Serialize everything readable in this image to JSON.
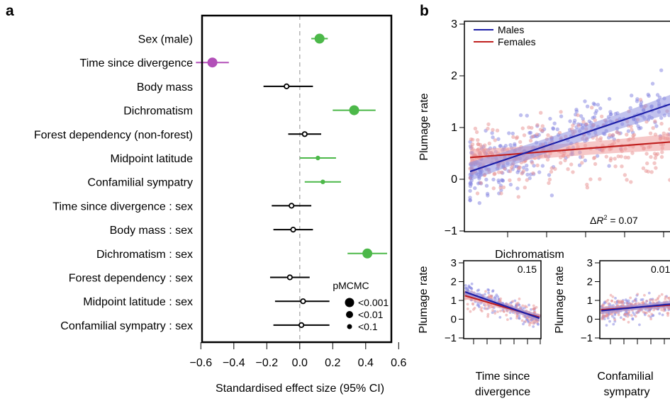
{
  "panel_labels": {
    "a": "a",
    "b": "b"
  },
  "colors": {
    "significant_green": "#4cb849",
    "time_purple": "#b24fb8",
    "nonsig_black": "#000000",
    "males_blue": "#1d1fa8",
    "females_red": "#c0201f",
    "males_band": "#8e8fe0",
    "females_band": "#ee9a9a",
    "males_point": "#8080e0",
    "females_point": "#e89090"
  },
  "chart_data": [
    {
      "type": "forest",
      "xlabel": "Standardised effect size (95% CI)",
      "xlim": [
        -0.7,
        0.65
      ],
      "xticks": [
        -0.6,
        -0.4,
        -0.2,
        0.0,
        0.2,
        0.4,
        0.6
      ],
      "xtick_labels": [
        "−0.6",
        "−0.4",
        "−0.2",
        "0.0",
        "0.2",
        "0.4",
        "0.6"
      ],
      "reference_line": 0,
      "legend": {
        "title": "pMCMC",
        "entries": [
          {
            "label": "<0.001",
            "size": "large"
          },
          {
            "label": "<0.01",
            "size": "medium"
          },
          {
            "label": "<0.1",
            "size": "small"
          }
        ]
      },
      "rows": [
        {
          "label": "Sex (male)",
          "estimate": 0.12,
          "lower": 0.07,
          "upper": 0.17,
          "color": "green",
          "size": "large"
        },
        {
          "label": "Time since divergence",
          "estimate": -0.53,
          "lower": -0.63,
          "upper": -0.43,
          "color": "purple",
          "size": "large"
        },
        {
          "label": "Body mass",
          "estimate": -0.08,
          "lower": -0.22,
          "upper": 0.08,
          "color": "black",
          "size": "small"
        },
        {
          "label": "Dichromatism",
          "estimate": 0.33,
          "lower": 0.2,
          "upper": 0.46,
          "color": "green",
          "size": "large"
        },
        {
          "label": "Forest dependency (non-forest)",
          "estimate": 0.03,
          "lower": -0.07,
          "upper": 0.13,
          "color": "black",
          "size": "small"
        },
        {
          "label": "Midpoint latitude",
          "estimate": 0.11,
          "lower": 0.0,
          "upper": 0.22,
          "color": "green",
          "size": "small"
        },
        {
          "label": "Confamilial sympatry",
          "estimate": 0.14,
          "lower": 0.03,
          "upper": 0.25,
          "color": "green",
          "size": "small"
        },
        {
          "label": "Time since divergence : sex",
          "estimate": -0.05,
          "lower": -0.17,
          "upper": 0.07,
          "color": "black",
          "size": "small"
        },
        {
          "label": "Body mass : sex",
          "estimate": -0.04,
          "lower": -0.16,
          "upper": 0.08,
          "color": "black",
          "size": "small"
        },
        {
          "label": "Dichromatism : sex",
          "estimate": 0.41,
          "lower": 0.29,
          "upper": 0.53,
          "color": "green",
          "size": "large"
        },
        {
          "label": "Forest dependency : sex",
          "estimate": -0.06,
          "lower": -0.18,
          "upper": 0.06,
          "color": "black",
          "size": "small"
        },
        {
          "label": "Midpoint latitude : sex",
          "estimate": 0.02,
          "lower": -0.15,
          "upper": 0.18,
          "color": "black",
          "size": "small"
        },
        {
          "label": "Confamilial sympatry : sex",
          "estimate": 0.01,
          "lower": -0.16,
          "upper": 0.18,
          "color": "black",
          "size": "small"
        }
      ]
    },
    {
      "type": "scatter",
      "xlabel": "Dichromatism",
      "ylabel": "Plumage rate",
      "ylim": [
        -1,
        3
      ],
      "yticks": [
        -1,
        0,
        1,
        2,
        3
      ],
      "annotation": "ΔR² = 0.07",
      "annotation_parts": {
        "prefix": "Δ",
        "italic": "R",
        "sup": "2",
        "suffix": " = 0.07"
      },
      "legend_position": "top-left",
      "series": [
        {
          "name": "Males",
          "color": "blue",
          "fit_start": 0.15,
          "fit_end": 1.45,
          "band_halfwidth": 0.18
        },
        {
          "name": "Females",
          "color": "red",
          "fit_start": 0.42,
          "fit_end": 0.72,
          "band_halfwidth": 0.16
        }
      ]
    },
    {
      "type": "scatter",
      "xlabel_lines": [
        "Time since",
        "divergence"
      ],
      "ylabel": "Plumage rate",
      "ylim": [
        -1,
        3
      ],
      "yticks": [
        -1,
        0,
        1,
        2,
        3
      ],
      "annotation": "0.15",
      "series": [
        {
          "name": "Males",
          "fit_start": 1.45,
          "fit_end": 0.05
        },
        {
          "name": "Females",
          "fit_start": 1.25,
          "fit_end": 0.1
        }
      ]
    },
    {
      "type": "scatter",
      "xlabel_lines": [
        "Confamilial",
        "sympatry"
      ],
      "ylabel": "Plumage rate",
      "ylim": [
        -1,
        3
      ],
      "yticks": [
        -1,
        0,
        1,
        2,
        3
      ],
      "annotation": "0.01",
      "series": [
        {
          "name": "Males",
          "fit_start": 0.45,
          "fit_end": 0.8
        },
        {
          "name": "Females",
          "fit_start": 0.5,
          "fit_end": 0.75
        }
      ]
    }
  ]
}
